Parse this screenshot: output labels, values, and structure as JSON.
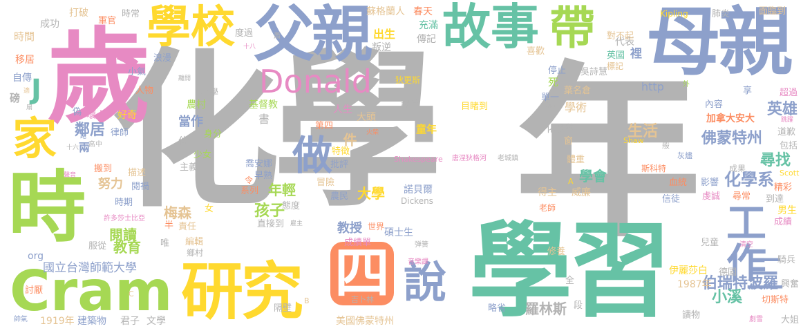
{
  "words": [
    "化學",
    "年",
    "學習",
    "歲",
    "時",
    "母親",
    "父親",
    "故事",
    "學校",
    "研究",
    "Cram",
    "帶",
    "家",
    "Donald",
    "四",
    "做",
    "說",
    "工作",
    "三",
    "J",
    "件",
    "孩子",
    "化學系",
    "尋找",
    "英雄",
    "佛蒙特州",
    "生活",
    "大學",
    "學會",
    "年輕",
    "教授",
    "國立台灣師範大學",
    "伯瑞特波羅",
    "小溪",
    "羅林斯",
    "梅森",
    "閱讀",
    "教育",
    "努力",
    "鄰居",
    "當作",
    "1919年",
    "建築物",
    "君子",
    "文學",
    "美國佛蒙特州",
    "1987年",
    "伊麗莎白",
    "成功",
    "時間",
    "移居",
    "自傳",
    "打破",
    "軍官",
    "時常",
    "蘇格蘭人",
    "春天",
    "充滿",
    "出生",
    "叛逆",
    "傳記",
    "代表",
    "對不起",
    "英國",
    "裡",
    "面臨到",
    "肺炎",
    "Kipling",
    "喜歡",
    "停止",
    "吳詩慧",
    "http",
    "葉名倉",
    "單一",
    "死",
    "學術",
    "化學獎",
    "窗",
    "目睹到",
    "基督教",
    "書",
    "人生",
    "大頭",
    "第四",
    "課堂",
    "童年",
    "特徵",
    "批評",
    "喬安娜",
    "早熟",
    "冒險",
    "諾貝爾",
    "農民",
    "系列",
    "碩士生",
    "世界",
    "成績單",
    "直接到",
    "態度",
    "小學",
    "農村",
    "身分",
    "少女",
    "主義",
    "位",
    "壞人",
    "好奇",
    "律師",
    "兩",
    "搬到",
    "描述",
    "閱禍",
    "時期",
    "責任",
    "女",
    "編輯",
    "許多莎士比亞",
    "服從",
    "半",
    "唯",
    "鄉村",
    "隔壁",
    "討厭",
    "浪漫",
    "小氣",
    "人物",
    "偽",
    "磅",
    "內容",
    "加拿大安大",
    "包括",
    "道歉",
    "精彩",
    "到達",
    "男生",
    "成績",
    "兒童",
    "德國",
    "騎兵",
    "興奮",
    "切斯特",
    "大姐",
    "讀物",
    "段",
    "略省",
    "修養",
    "全",
    "得主",
    "老師",
    "威廉",
    "虔誠",
    "信徒",
    "尋常",
    "影響",
    "血統",
    "成果",
    "斯科特",
    "Scott",
    "Shaw",
    "灰燼",
    "般",
    "Shakespeare",
    "唐涅狄格河",
    "老城鎮",
    "Dickens",
    "吉卜林",
    "弹簧",
    "音樂課",
    "清空",
    "超過",
    "享",
    "體重",
    "狄更斯",
    "度過",
    "十八",
    "蕭",
    "外",
    "當做",
    "跳躍",
    "雇主",
    "B",
    "C",
    "帥氣",
    "劇雪",
    "高中",
    "十六",
    "聲音",
    "跑",
    "適",
    "扇",
    "離開",
    "標記",
    "火柴",
    "令",
    "org",
    "A"
  ],
  "palette": {
    "gray": "#b3b3b3",
    "blue": "#8da0cb",
    "teal": "#66c2a5",
    "orange": "#fc8d62",
    "pink": "#e78ac3",
    "green": "#a6d854",
    "yellow": "#ffd92f",
    "tan": "#e5c494"
  }
}
